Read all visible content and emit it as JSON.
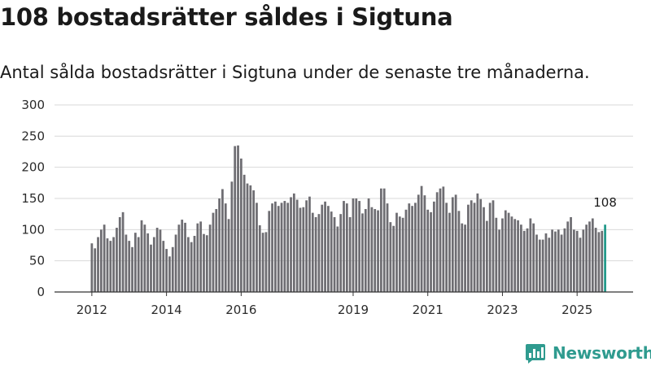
{
  "title": "108 bostadsrätter såldes i Sigtuna",
  "subtitle": "Antal sålda bostadsrätter i Sigtuna under de senaste tre månaderna.",
  "brand": {
    "name": "Newsworthy",
    "logo_icon": "newsworthy-logo-icon"
  },
  "colors": {
    "bar": "#6e6d72",
    "highlight": "#22998a",
    "grid": "#d9d9d9",
    "axis": "#333333"
  },
  "chart_data": {
    "type": "bar",
    "title": "108 bostadsrätter såldes i Sigtuna",
    "xlabel": "",
    "ylabel": "",
    "ylim": [
      0,
      300
    ],
    "yticks": [
      0,
      50,
      100,
      150,
      200,
      250,
      300
    ],
    "xlim": [
      2011.0,
      2026.5
    ],
    "xticks": [
      2012,
      2014,
      2016,
      2019,
      2021,
      2023,
      2025
    ],
    "start": 2012.0,
    "step": 0.0833333,
    "highlight_label": "108",
    "values": [
      78,
      70,
      88,
      100,
      108,
      86,
      82,
      88,
      103,
      120,
      128,
      92,
      82,
      72,
      95,
      88,
      115,
      108,
      94,
      76,
      88,
      103,
      100,
      82,
      69,
      57,
      72,
      92,
      108,
      116,
      111,
      88,
      80,
      90,
      110,
      113,
      93,
      91,
      108,
      127,
      133,
      150,
      165,
      142,
      117,
      177,
      234,
      235,
      214,
      188,
      174,
      171,
      163,
      143,
      107,
      95,
      96,
      130,
      142,
      145,
      138,
      143,
      146,
      143,
      152,
      158,
      148,
      135,
      136,
      147,
      153,
      127,
      120,
      125,
      140,
      145,
      138,
      129,
      120,
      105,
      125,
      146,
      142,
      120,
      150,
      150,
      146,
      126,
      133,
      150,
      136,
      133,
      131,
      166,
      166,
      142,
      112,
      106,
      127,
      121,
      119,
      132,
      142,
      138,
      143,
      156,
      170,
      155,
      132,
      128,
      145,
      160,
      166,
      169,
      143,
      127,
      152,
      156,
      130,
      110,
      108,
      140,
      147,
      143,
      158,
      149,
      136,
      114,
      143,
      147,
      119,
      100,
      118,
      131,
      127,
      121,
      117,
      115,
      108,
      98,
      102,
      118,
      110,
      92,
      84,
      84,
      94,
      87,
      100,
      97,
      100,
      92,
      102,
      113,
      120,
      100,
      98,
      87,
      100,
      108,
      113,
      118,
      103,
      96,
      98,
      108
    ]
  }
}
